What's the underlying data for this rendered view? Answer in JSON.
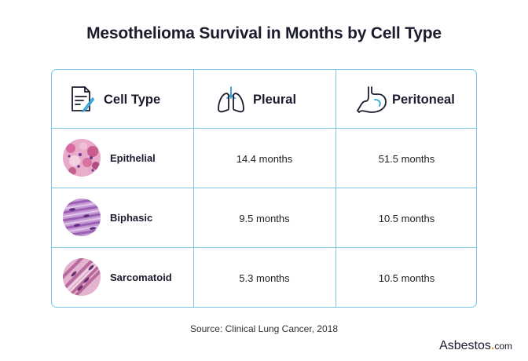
{
  "title": "Mesothelioma Survival in Months by Cell Type",
  "table": {
    "headers": [
      {
        "label": "Cell Type",
        "icon": "document-pen-icon"
      },
      {
        "label": "Pleural",
        "icon": "lungs-icon"
      },
      {
        "label": "Peritoneal",
        "icon": "stomach-icon"
      }
    ],
    "rows": [
      {
        "cell_type": "Epithelial",
        "pleural": "14.4 months",
        "peritoneal": "51.5 months",
        "thumb": "epithelial-tissue-icon"
      },
      {
        "cell_type": "Biphasic",
        "pleural": "9.5 months",
        "peritoneal": "10.5 months",
        "thumb": "biphasic-tissue-icon"
      },
      {
        "cell_type": "Sarcomatoid",
        "pleural": "5.3 months",
        "peritoneal": "10.5 months",
        "thumb": "sarcomatoid-tissue-icon"
      }
    ]
  },
  "source": "Source: Clinical Lung Cancer, 2018",
  "brand": {
    "name": "Asbestos",
    "dot": ".",
    "suffix": "com"
  },
  "colors": {
    "border": "#7fc6e6",
    "accent": "#f28c28",
    "text": "#1b1b2e"
  }
}
